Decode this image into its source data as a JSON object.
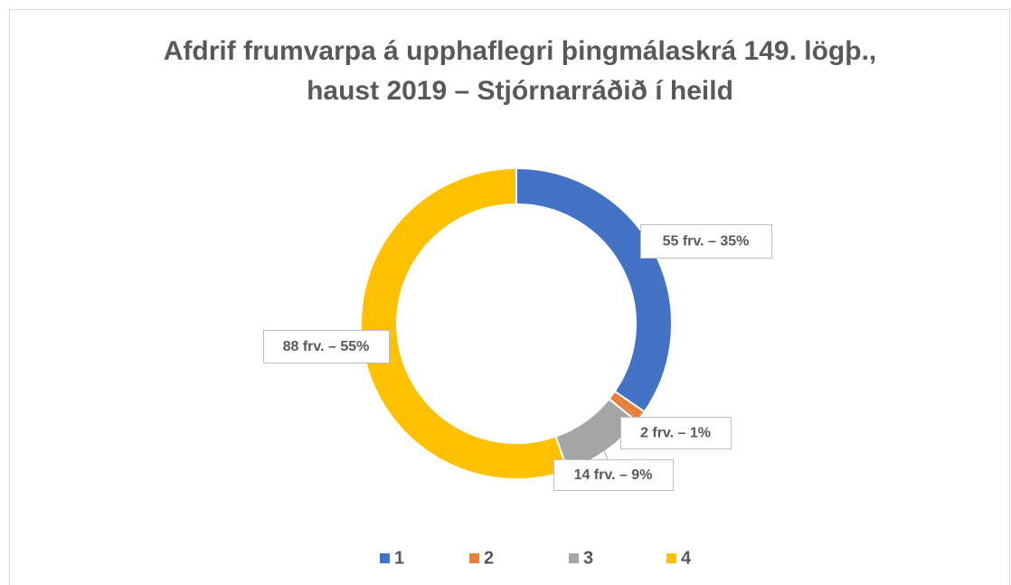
{
  "chart_data": {
    "type": "donut",
    "title": [
      "Afdrif frumvarpa á upphaflegri þingmálaskrá 149. lögþ.,",
      "haust 2019 – Stjórnarráðið í heild"
    ],
    "categories": [
      "1",
      "2",
      "3",
      "4"
    ],
    "values": [
      55,
      2,
      14,
      88
    ],
    "value_labels": [
      "55 frv. – 35%",
      "2 frv. – 1%",
      "14 frv. – 9%",
      "88 frv. – 55%"
    ],
    "colors": [
      "#4472c4",
      "#ed7d31",
      "#a5a5a5",
      "#ffc000"
    ],
    "legend": "bottom"
  }
}
